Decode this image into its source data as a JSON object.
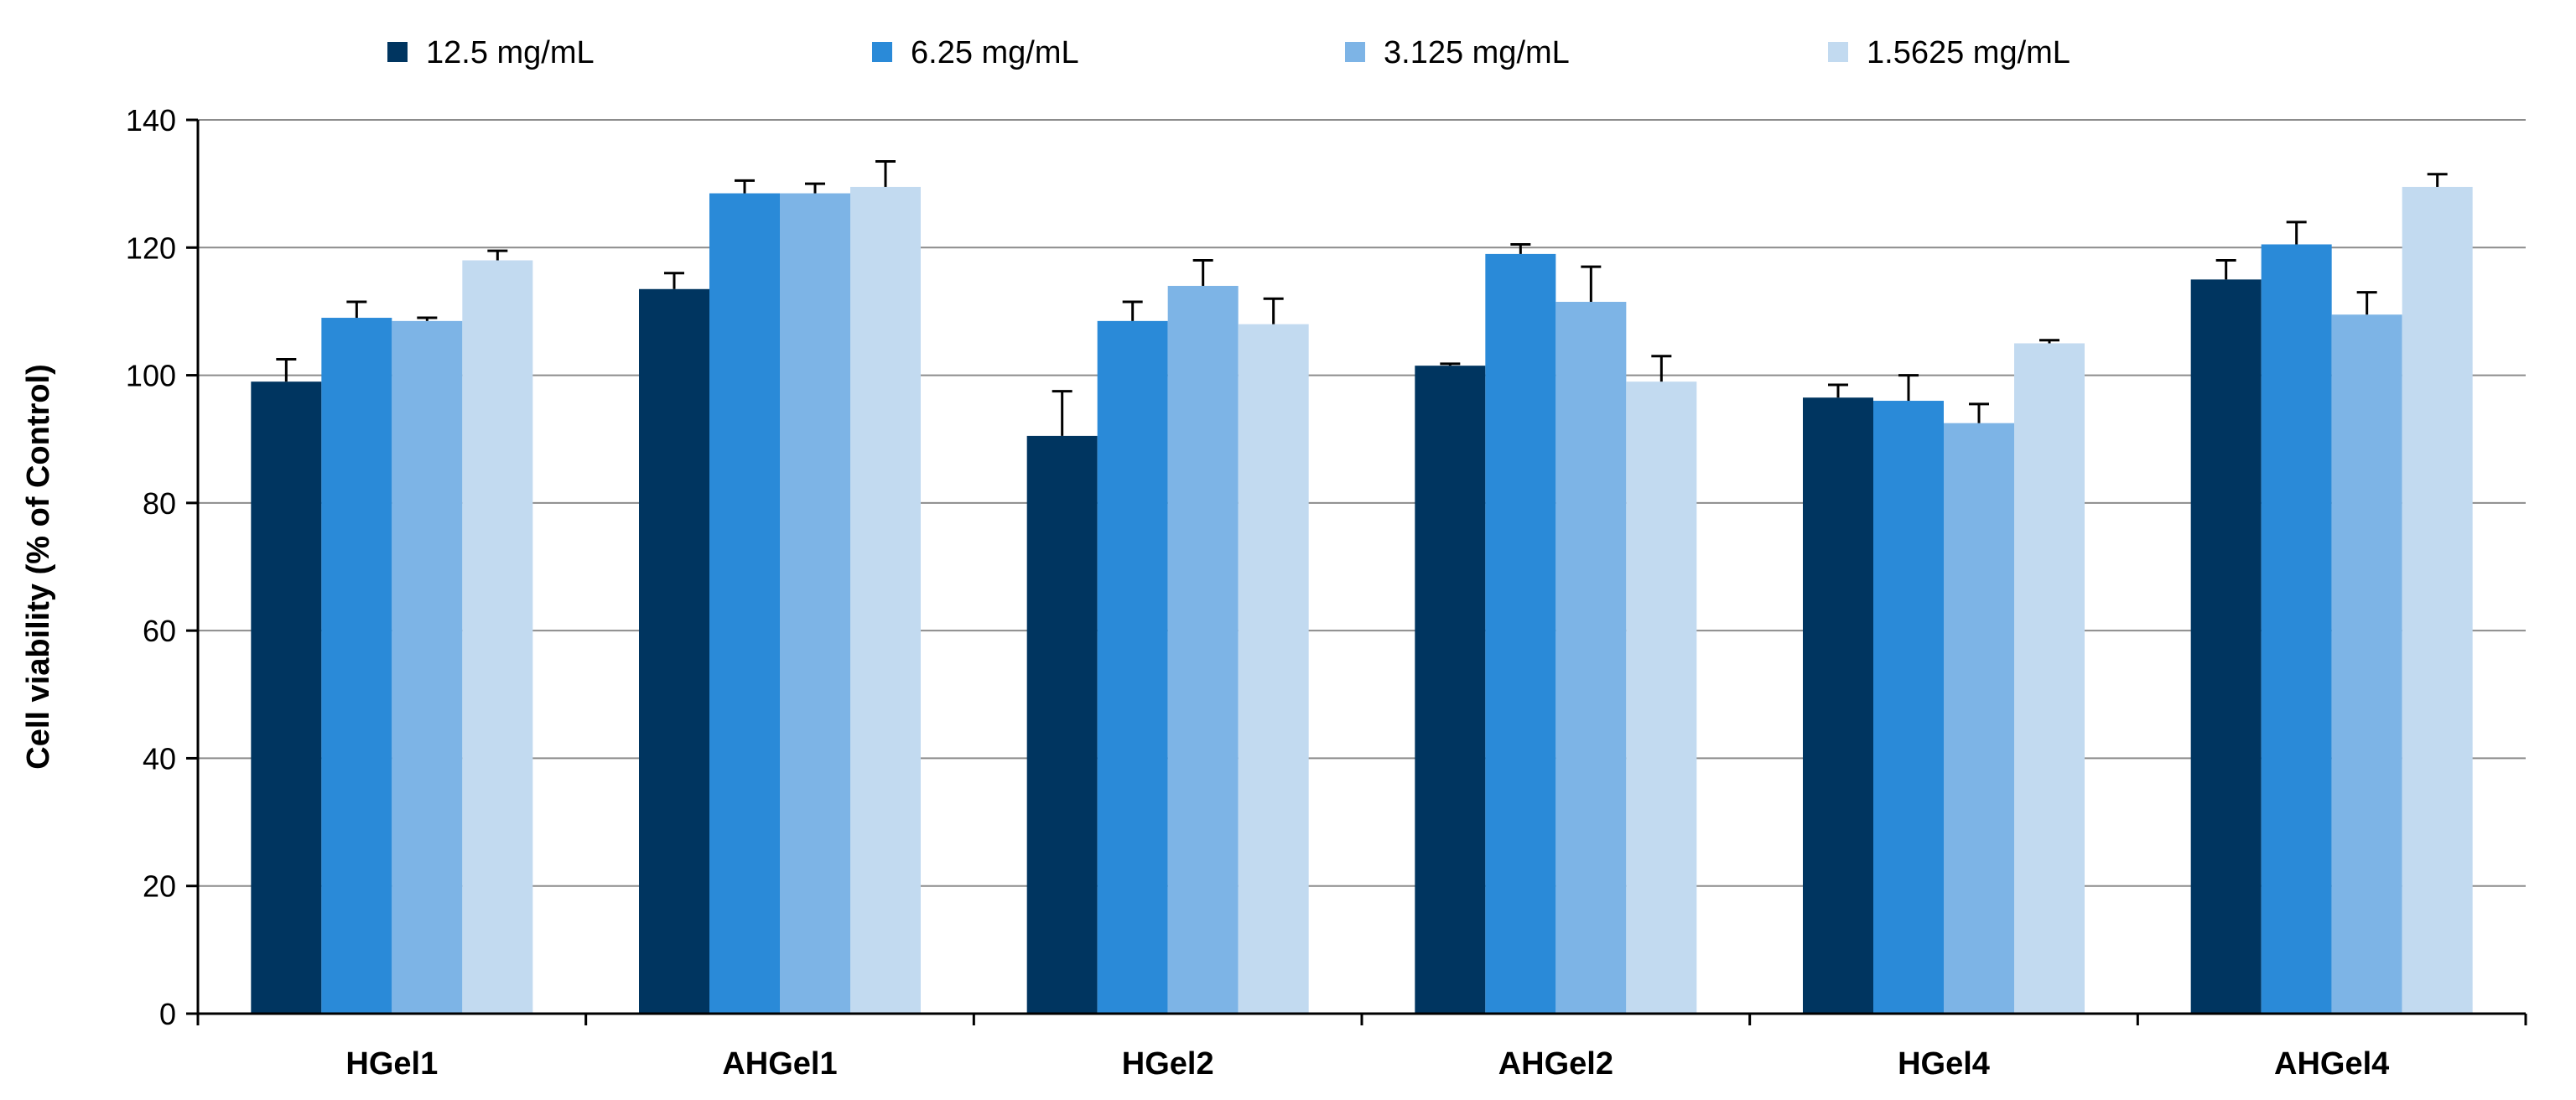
{
  "chart_data": {
    "type": "bar",
    "title": "",
    "xlabel": "",
    "ylabel": "Cell viability (% of Control)",
    "ylim": [
      0,
      140
    ],
    "yticks": [
      0,
      20,
      40,
      60,
      80,
      100,
      120,
      140
    ],
    "grid": true,
    "legend_position": "top",
    "categories": [
      "HGel1",
      "AHGel1",
      "HGel2",
      "AHGel2",
      "HGel4",
      "AHGel4"
    ],
    "series": [
      {
        "name": "12.5 mg/mL",
        "color": "#003560",
        "values": [
          99,
          113.5,
          90.5,
          101.5,
          96.5,
          115
        ],
        "errors": [
          3.5,
          2.5,
          7,
          0.3,
          2,
          3
        ]
      },
      {
        "name": "6.25 mg/mL",
        "color": "#2a8ad8",
        "values": [
          109,
          128.5,
          108.5,
          119,
          96,
          120.5
        ],
        "errors": [
          2.5,
          2,
          3,
          1.5,
          4,
          3.5
        ]
      },
      {
        "name": "3.125 mg/mL",
        "color": "#7db4e6",
        "values": [
          108.5,
          128.5,
          114,
          111.5,
          92.5,
          109.5
        ],
        "errors": [
          0.5,
          1.5,
          4,
          5.5,
          3,
          3.5
        ]
      },
      {
        "name": "1.5625 mg/mL",
        "color": "#c2daf0",
        "values": [
          118,
          129.5,
          108,
          99,
          105,
          129.5
        ],
        "errors": [
          1.5,
          4,
          4,
          4,
          0.5,
          2
        ]
      }
    ]
  }
}
